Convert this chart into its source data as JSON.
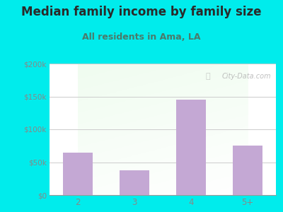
{
  "title": "Median family income by family size",
  "subtitle": "All residents in Ama, LA",
  "categories": [
    "2",
    "3",
    "4",
    "5+"
  ],
  "values": [
    65000,
    38000,
    145000,
    75000
  ],
  "bar_color": "#c4a8d4",
  "ylim": [
    0,
    200000
  ],
  "yticks": [
    0,
    50000,
    100000,
    150000,
    200000
  ],
  "ytick_labels": [
    "$0",
    "$50k",
    "$100k",
    "$150k",
    "$200k"
  ],
  "outer_bg": "#00ecec",
  "title_color": "#2a2a2a",
  "subtitle_color": "#4a7a6a",
  "tick_color": "#888888",
  "grid_color": "#cccccc",
  "watermark": "City-Data.com",
  "title_fontsize": 12,
  "subtitle_fontsize": 9
}
